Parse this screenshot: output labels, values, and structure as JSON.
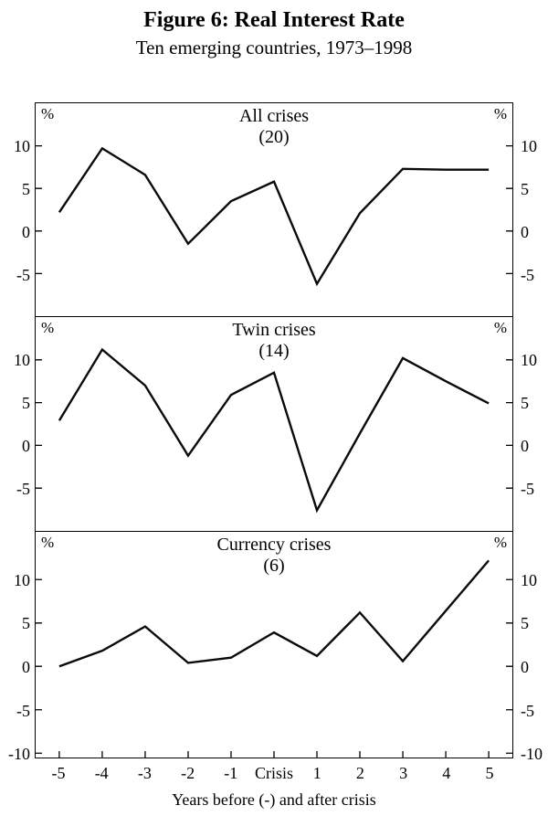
{
  "title": "Figure 6: Real Interest Rate",
  "subtitle": "Ten emerging countries, 1973–1998",
  "chart_data": {
    "type": "line",
    "categories": [
      "-5",
      "-4",
      "-3",
      "-2",
      "-1",
      "Crisis",
      "1",
      "2",
      "3",
      "4",
      "5"
    ],
    "xlabel": "Years before (-) and after crisis",
    "unit": "%",
    "line_color": "#0a0a0a",
    "grid": false,
    "legend": "none",
    "panels": [
      {
        "title": "All crises",
        "count_label": "(20)",
        "values": [
          2.2,
          9.7,
          6.6,
          -1.5,
          3.5,
          5.8,
          -6.2,
          2.1,
          7.3,
          7.2,
          7.2
        ],
        "yticks": [
          10,
          5,
          0,
          -5
        ],
        "ylim": [
          -10,
          15
        ]
      },
      {
        "title": "Twin crises",
        "count_label": "(14)",
        "values": [
          2.9,
          11.2,
          7.0,
          -1.2,
          5.9,
          8.5,
          -7.6,
          1.4,
          10.2,
          7.5,
          4.9
        ],
        "yticks": [
          10,
          5,
          0,
          -5
        ],
        "ylim": [
          -10,
          15
        ]
      },
      {
        "title": "Currency crises",
        "count_label": "(6)",
        "values": [
          0.0,
          1.8,
          4.6,
          0.4,
          1.0,
          3.9,
          1.2,
          6.2,
          0.6,
          6.4,
          12.2
        ],
        "yticks": [
          10,
          5,
          0,
          -5,
          -10
        ],
        "ylim": [
          -10.5,
          15.5
        ]
      }
    ]
  }
}
